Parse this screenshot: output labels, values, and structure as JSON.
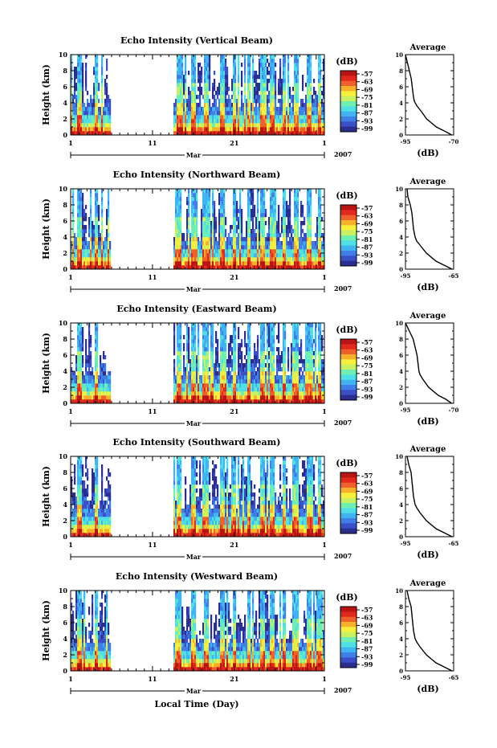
{
  "colors": {
    "scale": [
      "#2b2d8f",
      "#3b4fc7",
      "#3f7fe6",
      "#3fb4f0",
      "#4fe0e6",
      "#6ff0b0",
      "#c8f060",
      "#f6f03c",
      "#f6b02a",
      "#f0602a",
      "#e0281c",
      "#b81414"
    ]
  },
  "figure": {
    "xlabel": "Local Time (Day)",
    "ylabel": "Height (km)",
    "colorbar_label": "(dB)",
    "colorbar_ticks": [
      "-57",
      "-63",
      "-69",
      "-75",
      "-81",
      "-87",
      "-93",
      "-99"
    ],
    "profile_title": "Average",
    "profile_xlabel": "(dB)",
    "x_ticks": [
      "1",
      "11",
      "21",
      "1"
    ],
    "month_label": "Mar",
    "year_label": "2007",
    "y_ticks": [
      "10",
      "8",
      "6",
      "4",
      "2",
      "0"
    ]
  },
  "chart_data": [
    {
      "type": "heatmap",
      "title": "Echo Intensity (Vertical Beam)",
      "xlabel": "Local Time (Day)",
      "ylabel": "Height (km)",
      "xlim": [
        1,
        32
      ],
      "ylim": [
        0,
        10
      ],
      "colorbar": {
        "label": "(dB)",
        "range": [
          -99,
          -57
        ],
        "ticks": [
          -57,
          -63,
          -69,
          -75,
          -81,
          -87,
          -93,
          -99
        ]
      },
      "data_gap_days": [
        6,
        13.5
      ],
      "profile": {
        "title": "Average",
        "xlabel": "(dB)",
        "xtick_labels": [
          "-95",
          "-70"
        ],
        "xlim": [
          -95,
          -70
        ],
        "height_km": [
          0,
          0.4,
          1,
          2,
          3,
          3.6,
          4,
          4.3,
          5,
          6,
          7,
          8,
          9,
          10
        ],
        "db": [
          -71,
          -74,
          -79,
          -84,
          -87,
          -89,
          -90,
          -90.5,
          -91,
          -91.5,
          -92,
          -93,
          -94,
          -95
        ]
      }
    },
    {
      "type": "heatmap",
      "title": "Echo Intensity (Northward Beam)",
      "xlabel": "Local Time (Day)",
      "ylabel": "Height (km)",
      "xlim": [
        1,
        32
      ],
      "ylim": [
        0,
        10
      ],
      "colorbar": {
        "label": "(dB)",
        "range": [
          -99,
          -57
        ],
        "ticks": [
          -57,
          -63,
          -69,
          -75,
          -81,
          -87,
          -93,
          -99
        ]
      },
      "data_gap_days": [
        6,
        13.5
      ],
      "profile": {
        "title": "Average",
        "xlabel": "(dB)",
        "xtick_labels": [
          "-95",
          "-65"
        ],
        "xlim": [
          -95,
          -65
        ],
        "height_km": [
          0,
          0.4,
          1,
          2,
          3,
          3.5,
          4,
          5,
          6,
          7,
          8,
          9,
          10
        ],
        "db": [
          -66,
          -70,
          -76,
          -82,
          -86,
          -88,
          -89,
          -90,
          -90.5,
          -91,
          -92,
          -93.5,
          -94
        ]
      }
    },
    {
      "type": "heatmap",
      "title": "Echo Intensity (Eastward Beam)",
      "xlabel": "Local Time (Day)",
      "ylabel": "Height (km)",
      "xlim": [
        1,
        32
      ],
      "ylim": [
        0,
        10
      ],
      "colorbar": {
        "label": "(dB)",
        "range": [
          -99,
          -57
        ],
        "ticks": [
          -57,
          -63,
          -69,
          -75,
          -81,
          -87,
          -93,
          -99
        ]
      },
      "data_gap_days": [
        6,
        13.5
      ],
      "profile": {
        "title": "Average",
        "xlabel": "(dB)",
        "xtick_labels": [
          "-95",
          "-70"
        ],
        "xlim": [
          -95,
          -70
        ],
        "height_km": [
          0,
          0.5,
          1,
          2,
          3,
          3.6,
          4,
          5,
          6,
          7,
          8,
          9,
          10
        ],
        "db": [
          -71,
          -74,
          -78,
          -83,
          -86,
          -87.5,
          -88,
          -88.5,
          -89,
          -90,
          -91,
          -93,
          -95
        ]
      }
    },
    {
      "type": "heatmap",
      "title": "Echo Intensity (Southward Beam)",
      "xlabel": "Local Time (Day)",
      "ylabel": "Height (km)",
      "xlim": [
        1,
        32
      ],
      "ylim": [
        0,
        10
      ],
      "colorbar": {
        "label": "(dB)",
        "range": [
          -99,
          -57
        ],
        "ticks": [
          -57,
          -63,
          -69,
          -75,
          -81,
          -87,
          -93,
          -99
        ]
      },
      "data_gap_days": [
        6,
        13.5
      ],
      "profile": {
        "title": "Average",
        "xlabel": "(dB)",
        "xtick_labels": [
          "-95",
          "-65"
        ],
        "xlim": [
          -95,
          -65
        ],
        "height_km": [
          0,
          0.4,
          1,
          2,
          3,
          3.6,
          4,
          5,
          6,
          7,
          8,
          9,
          10
        ],
        "db": [
          -66,
          -70,
          -76,
          -82,
          -86,
          -88,
          -89,
          -90,
          -90.5,
          -91,
          -91.5,
          -93,
          -94
        ]
      }
    },
    {
      "type": "heatmap",
      "title": "Echo Intensity (Westward Beam)",
      "xlabel": "Local Time (Day)",
      "ylabel": "Height (km)",
      "xlim": [
        1,
        32
      ],
      "ylim": [
        0,
        10
      ],
      "colorbar": {
        "label": "(dB)",
        "range": [
          -99,
          -57
        ],
        "ticks": [
          -57,
          -63,
          -69,
          -75,
          -81,
          -87,
          -93,
          -99
        ]
      },
      "data_gap_days": [
        6,
        13.5
      ],
      "profile": {
        "title": "Average",
        "xlabel": "(dB)",
        "xtick_labels": [
          "-95",
          "-65"
        ],
        "xlim": [
          -95,
          -65
        ],
        "height_km": [
          0,
          0.4,
          1,
          2,
          3,
          3.6,
          4,
          5,
          6,
          7,
          8,
          9,
          10
        ],
        "db": [
          -66,
          -70,
          -76,
          -82,
          -86,
          -88,
          -89,
          -90,
          -90.5,
          -91,
          -91.5,
          -93,
          -94
        ]
      }
    }
  ]
}
